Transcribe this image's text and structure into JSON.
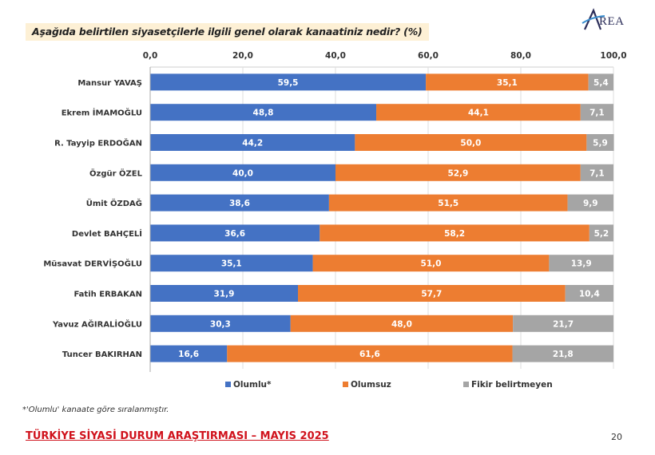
{
  "header": {
    "question": "Aşağıda belirtilen siyasetçilerle ilgili genel olarak kanaatiniz nedir? (%)",
    "logo_text": "REA",
    "logo_initial": "A"
  },
  "chart_data": {
    "type": "bar",
    "orientation": "horizontal",
    "stacked": true,
    "title": "Aşağıda belirtilen siyasetçilerle ilgili genel olarak kanaatiniz nedir? (%)",
    "xlabel": "",
    "ylabel": "",
    "xlim": [
      0,
      100
    ],
    "x_ticks": [
      "0,0",
      "20,0",
      "40,0",
      "60,0",
      "80,0",
      "100,0"
    ],
    "x_tick_values": [
      0,
      20,
      40,
      60,
      80,
      100
    ],
    "x_axis_position": "top",
    "grid": true,
    "legend_position": "bottom",
    "categories": [
      "Mansur YAVAŞ",
      "Ekrem İMAMOĞLU",
      "R. Tayyip ERDOĞAN",
      "Özgür ÖZEL",
      "Ümit ÖZDAĞ",
      "Devlet BAHÇELİ",
      "Müsavat DERVİŞOĞLU",
      "Fatih ERBAKAN",
      "Yavuz AĞIRALİOĞLU",
      "Tuncer BAKIRHAN"
    ],
    "series": [
      {
        "name": "Olumlu*",
        "color": "#4472c4",
        "values": [
          59.5,
          48.8,
          44.2,
          40.0,
          38.6,
          36.6,
          35.1,
          31.9,
          30.3,
          16.6
        ],
        "labels": [
          "59,5",
          "48,8",
          "44,2",
          "40,0",
          "38,6",
          "36,6",
          "35,1",
          "31,9",
          "30,3",
          "16,6"
        ]
      },
      {
        "name": "Olumsuz",
        "color": "#ed7d31",
        "values": [
          35.1,
          44.1,
          50.0,
          52.9,
          51.5,
          58.2,
          51.0,
          57.7,
          48.0,
          61.6
        ],
        "labels": [
          "35,1",
          "44,1",
          "50,0",
          "52,9",
          "51,5",
          "58,2",
          "51,0",
          "57,7",
          "48,0",
          "61,6"
        ]
      },
      {
        "name": "Fikir belirtmeyen",
        "color": "#a5a5a5",
        "values": [
          5.4,
          7.1,
          5.9,
          7.1,
          9.9,
          5.2,
          13.9,
          10.4,
          21.7,
          21.8
        ],
        "labels": [
          "5,4",
          "7,1",
          "5,9",
          "7,1",
          "9,9",
          "5,2",
          "13,9",
          "10,4",
          "21,7",
          "21,8"
        ]
      }
    ]
  },
  "footnote": "*'Olumlu' kanaate göre sıralanmıştır.",
  "footer": {
    "title": "TÜRKİYE SİYASİ DURUM ARAŞTIRMASI – MAYIS 2025",
    "page_number": "20"
  }
}
